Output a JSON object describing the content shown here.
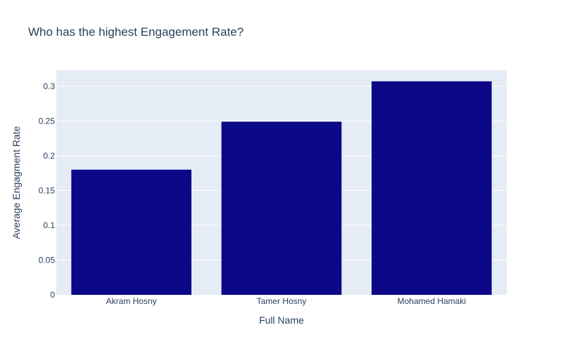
{
  "chart_data": {
    "type": "bar",
    "title": "Who has the highest Engagement Rate?",
    "xlabel": "Full Name",
    "ylabel": "Average Engagment Rate",
    "categories": [
      "Akram Hosny",
      "Tamer Hosny",
      "Mohamed Hamaki"
    ],
    "values": [
      0.18,
      0.249,
      0.307
    ],
    "ylim": [
      0,
      0.323
    ],
    "yticks": [
      0,
      0.05,
      0.1,
      0.15,
      0.2,
      0.25,
      0.3
    ],
    "ytick_labels": [
      "0",
      "0.05",
      "0.1",
      "0.15",
      "0.2",
      "0.25",
      "0.3"
    ],
    "grid": true,
    "bar_color": "#0d0887",
    "plot_background": "#e5ecf6",
    "text_color": "#2a3f5f"
  }
}
